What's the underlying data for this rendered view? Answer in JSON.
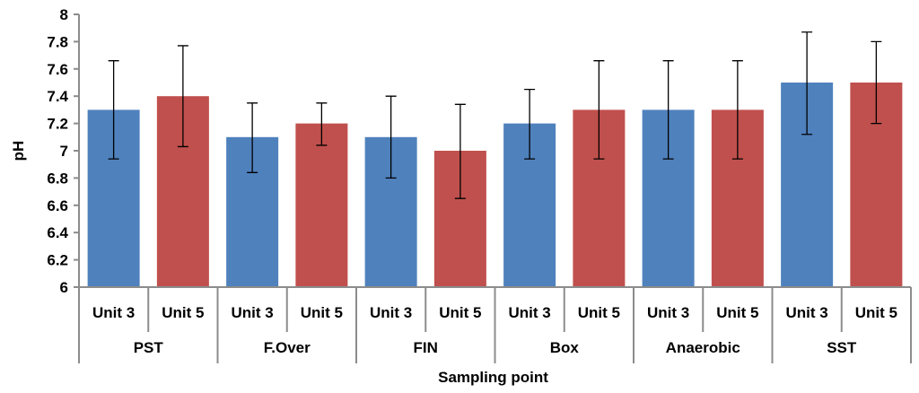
{
  "chart_data": {
    "type": "bar",
    "title": "",
    "xlabel": "Sampling point",
    "ylabel": "pH",
    "ylim": [
      6,
      8
    ],
    "yticks": [
      "6",
      "6.2",
      "6.4",
      "6.6",
      "6.8",
      "7",
      "7.2",
      "7.4",
      "7.6",
      "7.8",
      "8"
    ],
    "grid": false,
    "legend": "none",
    "groups": [
      "PST",
      "F.Over",
      "FIN",
      "Box",
      "Anaerobic",
      "SST"
    ],
    "subcategories": [
      "Unit 3",
      "Unit 5"
    ],
    "colors": {
      "Unit 3": "#4f81bd",
      "Unit 5": "#c0504d"
    },
    "series": [
      {
        "subcategory": "Unit 3",
        "values": [
          7.3,
          7.1,
          7.1,
          7.2,
          7.3,
          7.5
        ],
        "error_low": [
          6.94,
          6.84,
          6.8,
          6.94,
          6.94,
          7.12
        ],
        "error_high": [
          7.66,
          7.35,
          7.4,
          7.45,
          7.66,
          7.87
        ]
      },
      {
        "subcategory": "Unit 5",
        "values": [
          7.4,
          7.2,
          7.0,
          7.3,
          7.3,
          7.5
        ],
        "error_low": [
          7.03,
          7.04,
          6.65,
          6.94,
          6.94,
          7.2
        ],
        "error_high": [
          7.77,
          7.35,
          7.34,
          7.66,
          7.66,
          7.8
        ]
      }
    ]
  }
}
